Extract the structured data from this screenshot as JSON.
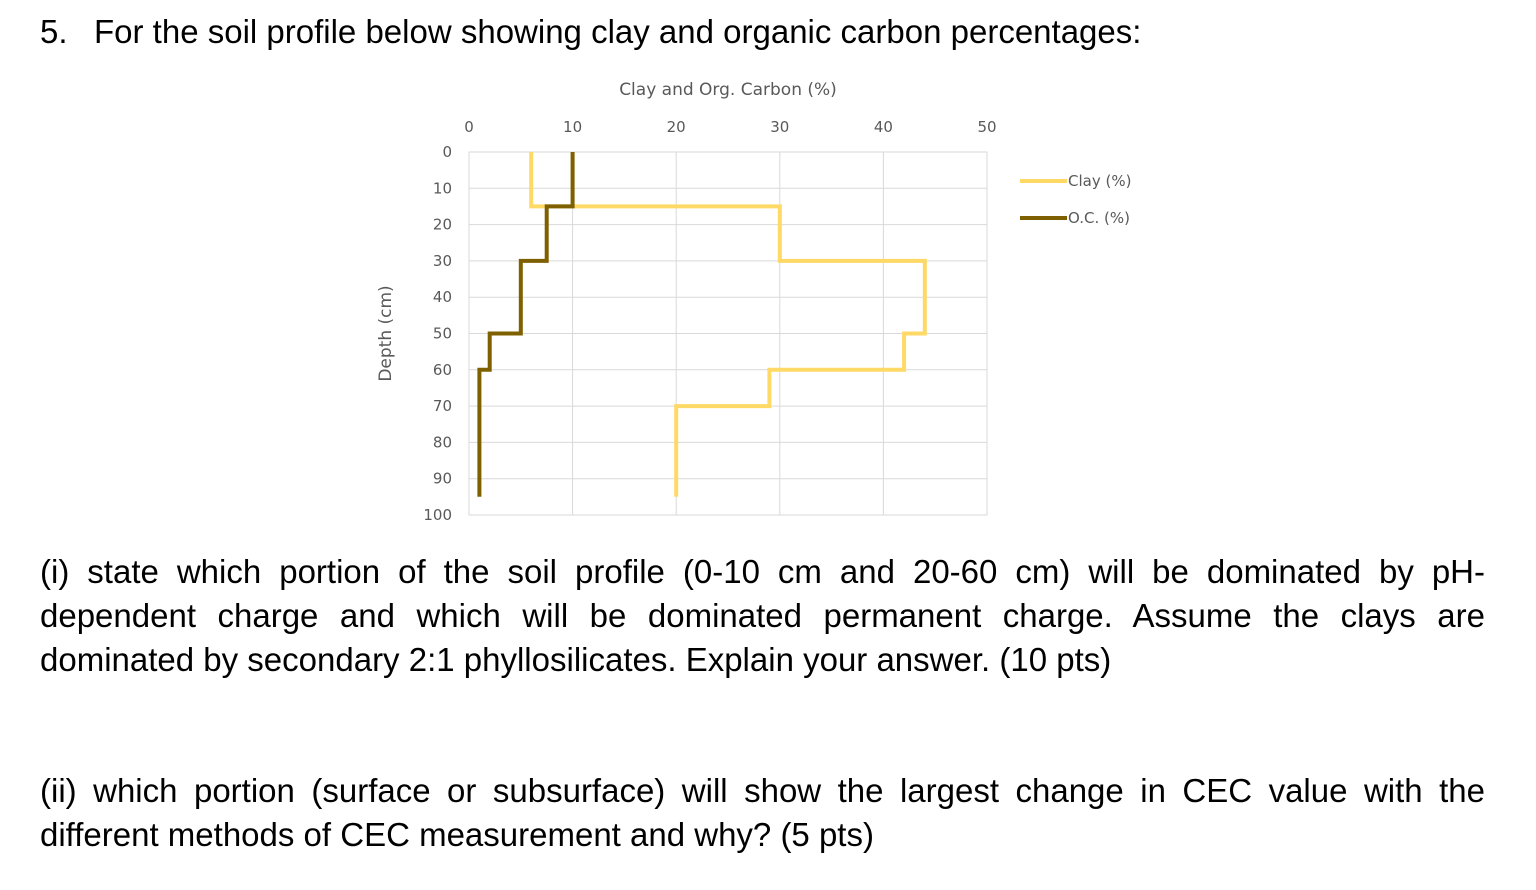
{
  "question": {
    "number": "5.",
    "title": "For the soil profile below showing clay and organic carbon percentages:",
    "part_i": "(i) state which portion of the soil profile (0-10 cm and 20-60 cm) will be dominated by pH-dependent charge and which will be dominated permanent charge. Assume the clays are dominated by secondary 2:1 phyllosilicates. Explain your answer. (10 pts)",
    "part_ii": "(ii) which portion (surface or subsurface) will show the largest change in CEC value with the different methods of CEC measurement and why? (5 pts)"
  },
  "chart_data": {
    "type": "line",
    "xlabel": "Clay and Org. Carbon (%)",
    "ylabel": "Depth (cm)",
    "xlim": [
      0,
      50
    ],
    "ylim": [
      0,
      100
    ],
    "x_ticks": [
      "0",
      "10",
      "20",
      "30",
      "40",
      "50"
    ],
    "y_ticks": [
      "0",
      "10",
      "20",
      "30",
      "40",
      "50",
      "60",
      "70",
      "80",
      "90",
      "100"
    ],
    "x_axis_position": "top",
    "y_axis_inverted": true,
    "grid": true,
    "legend_position": "right",
    "series": [
      {
        "name": "Clay (%)",
        "color": "#ffd966",
        "points": [
          [
            6,
            0
          ],
          [
            6,
            15
          ],
          [
            30,
            15
          ],
          [
            30,
            30
          ],
          [
            44,
            30
          ],
          [
            44,
            50
          ],
          [
            42,
            50
          ],
          [
            42,
            60
          ],
          [
            29,
            60
          ],
          [
            29,
            70
          ],
          [
            20,
            70
          ],
          [
            20,
            95
          ]
        ]
      },
      {
        "name": "O.C. (%)",
        "color": "#7f6000",
        "points": [
          [
            10,
            0
          ],
          [
            10,
            15
          ],
          [
            7.5,
            15
          ],
          [
            7.5,
            30
          ],
          [
            5,
            30
          ],
          [
            5,
            50
          ],
          [
            2,
            50
          ],
          [
            2,
            60
          ],
          [
            1,
            60
          ],
          [
            1,
            95
          ]
        ]
      }
    ]
  }
}
